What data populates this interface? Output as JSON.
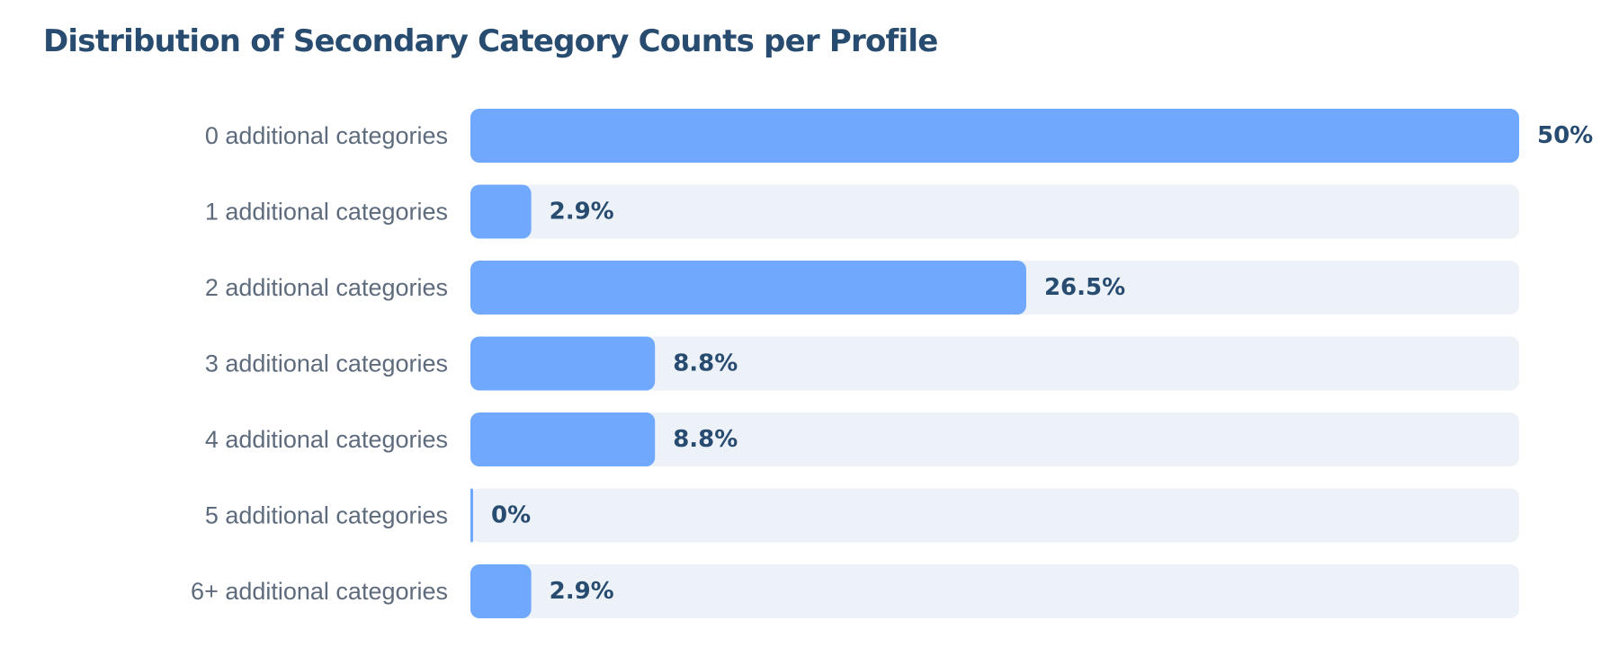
{
  "chart_data": {
    "type": "bar",
    "orientation": "horizontal",
    "title": "Distribution of Secondary Category Counts per Profile",
    "categories": [
      "0 additional categories",
      "1 additional categories",
      "2 additional categories",
      "3 additional categories",
      "4 additional categories",
      "5 additional categories",
      "6+ additional categories"
    ],
    "values": [
      50,
      2.9,
      26.5,
      8.8,
      8.8,
      0,
      2.9
    ],
    "value_labels": [
      "50%",
      "2.9%",
      "26.5%",
      "8.8%",
      "8.8%",
      "0%",
      "2.9%"
    ],
    "xlim": [
      0,
      50
    ],
    "grid": false,
    "colors": {
      "bar": "#6fa8fd",
      "track": "#edf2f9",
      "title": "#284b70",
      "category_label": "#5d6b7d",
      "value_label": "#284b70"
    }
  }
}
